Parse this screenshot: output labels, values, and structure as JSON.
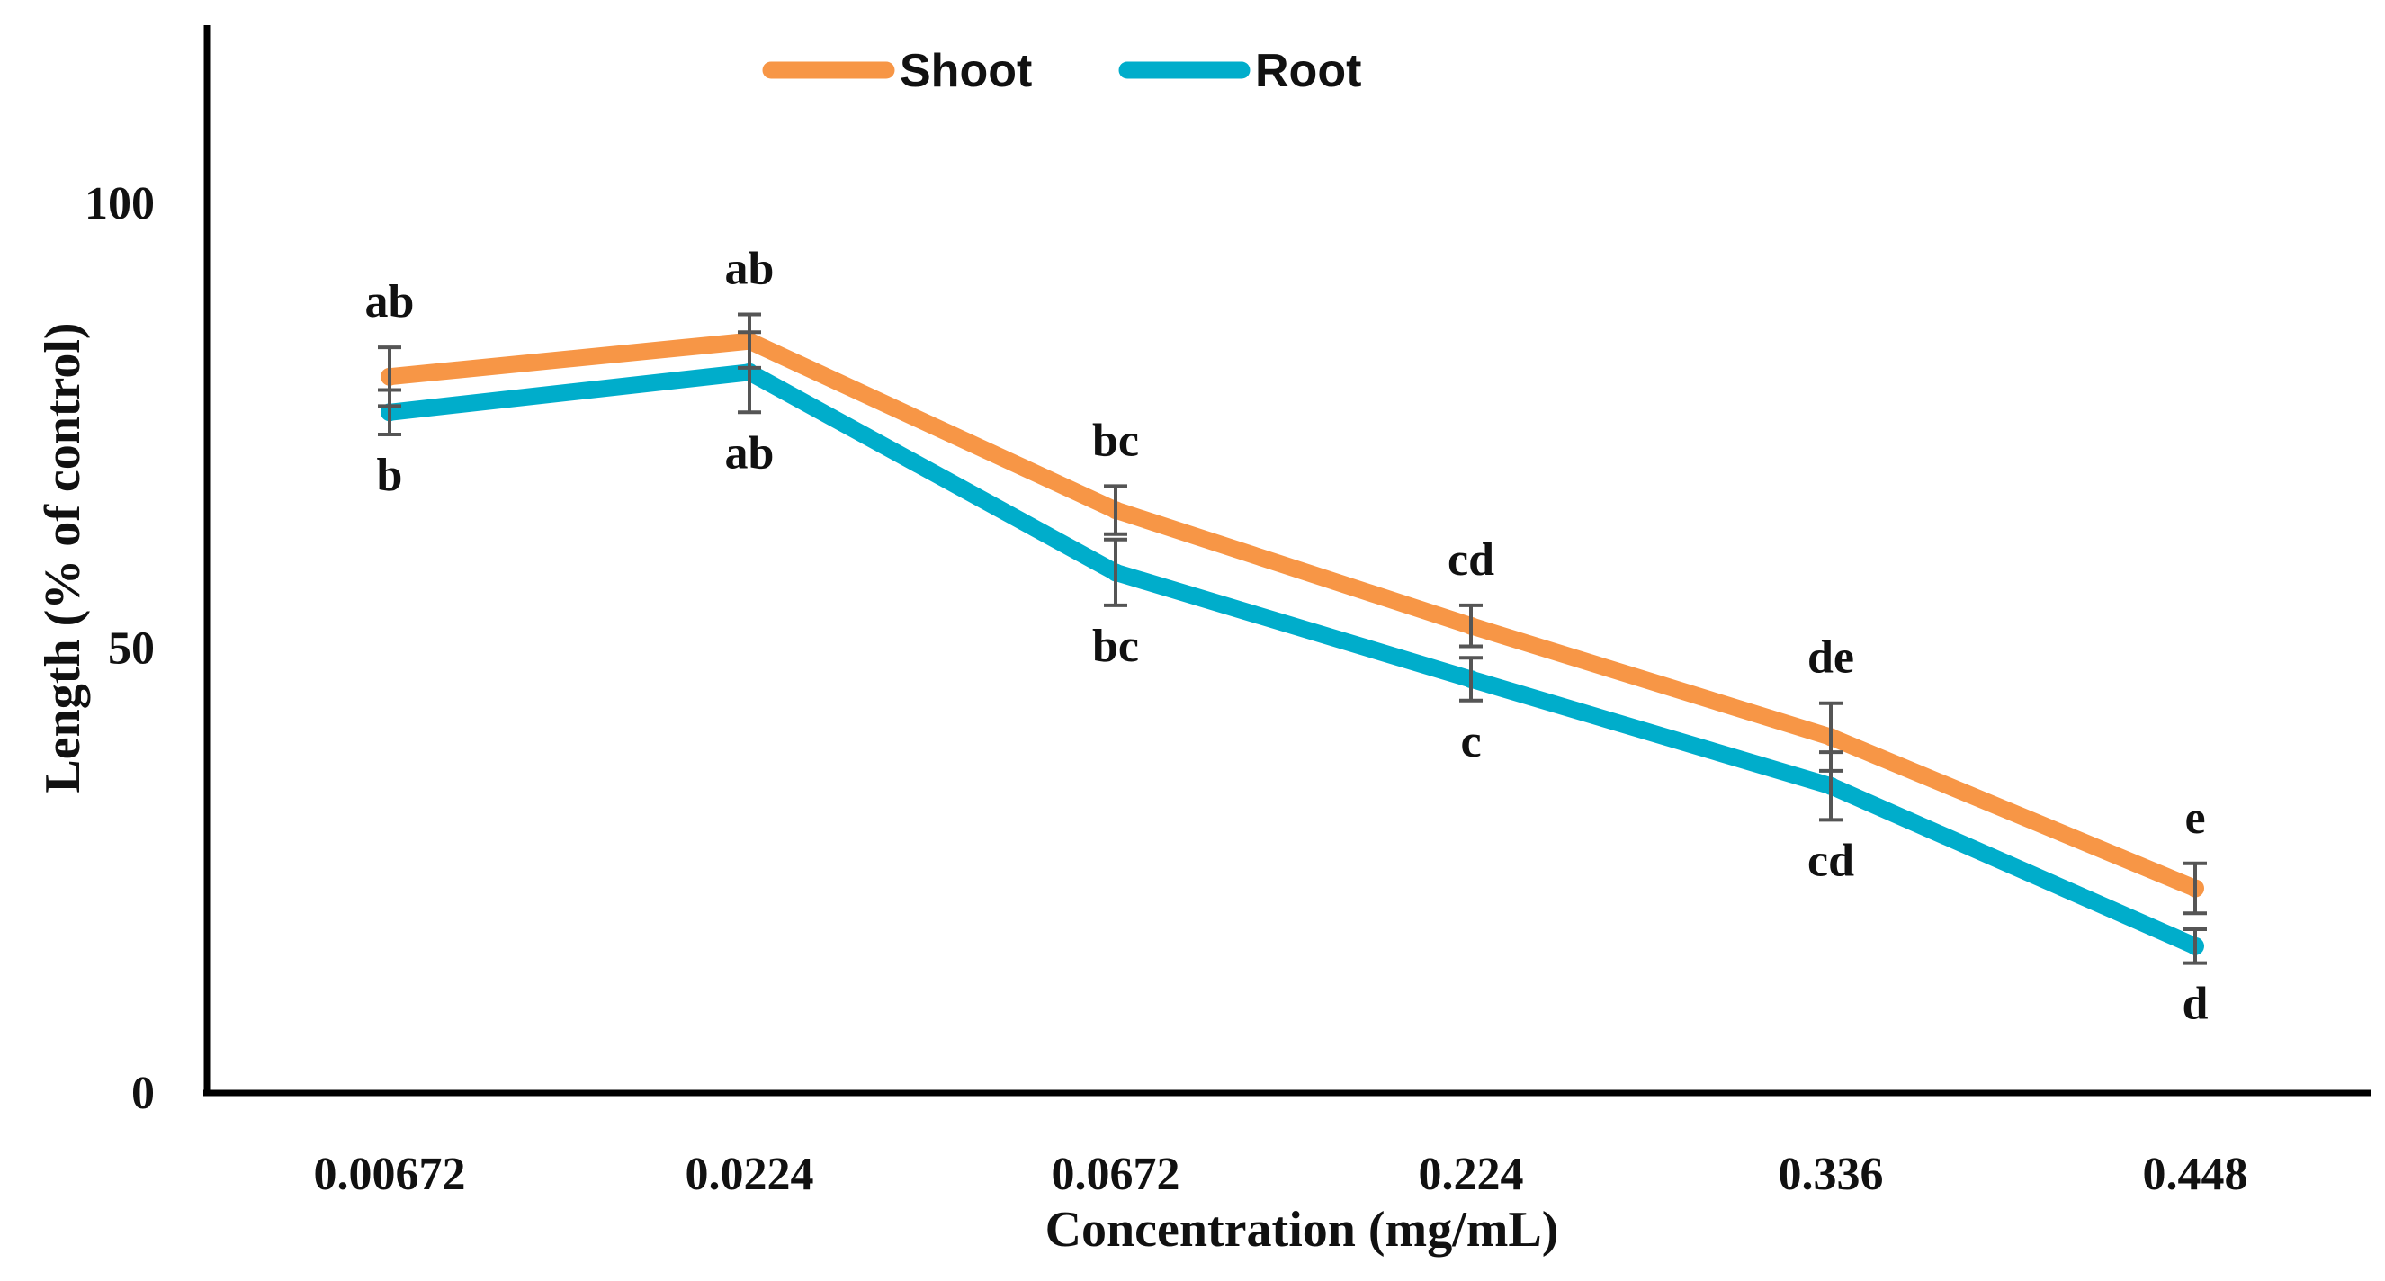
{
  "chart_data": {
    "type": "line",
    "title": "",
    "xlabel": "Concentration (mg/mL)",
    "ylabel": "Length (% of control)",
    "categories": [
      "0.00672",
      "0.0224",
      "0.0672",
      "0.224",
      "0.336",
      "0.448"
    ],
    "ylim": [
      0,
      120
    ],
    "yticks": [
      0,
      50,
      100
    ],
    "legend_position": "top-center",
    "grid": false,
    "series": [
      {
        "name": "Shoot",
        "color": "#F79646",
        "values": [
          80.5,
          84.5,
          65.5,
          52.5,
          40,
          23
        ],
        "errors": [
          3.3,
          3.0,
          2.7,
          2.3,
          3.8,
          2.8
        ],
        "letters": [
          "ab",
          "ab",
          "bc",
          "cd",
          "de",
          "e"
        ]
      },
      {
        "name": "Root",
        "color": "#00ADCB",
        "values": [
          76.5,
          81,
          58.5,
          46.5,
          34.5,
          16.5
        ],
        "errors": [
          2.5,
          4.5,
          3.7,
          2.4,
          3.8,
          1.9
        ],
        "letters": [
          "b",
          "ab",
          "bc",
          "c",
          "cd",
          "d"
        ]
      }
    ]
  }
}
